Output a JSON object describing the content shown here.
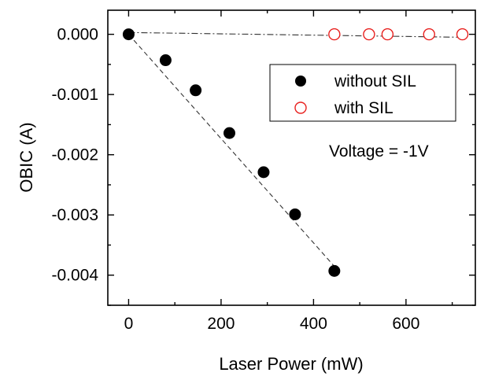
{
  "chart_data": {
    "type": "scatter",
    "title": "",
    "xlabel": "Laser Power (mW)",
    "ylabel": "OBIC (A)",
    "xlim": [
      -45,
      750
    ],
    "ylim": [
      -0.0045,
      0.0004
    ],
    "xticks": [
      0,
      200,
      400,
      600
    ],
    "xtick_labels": [
      "0",
      "200",
      "400",
      "600"
    ],
    "yticks": [
      0.0,
      -0.001,
      -0.002,
      -0.003,
      -0.004
    ],
    "ytick_labels": [
      "0.000",
      "-0.001",
      "-0.002",
      "-0.003",
      "-0.004"
    ],
    "series": [
      {
        "name": "without SIL",
        "marker": "filled-circle",
        "color": "#000000",
        "x": [
          0,
          80,
          145,
          218,
          292,
          360,
          445
        ],
        "y": [
          0.0,
          -0.00043,
          -0.00093,
          -0.00164,
          -0.00229,
          -0.00299,
          -0.00393
        ]
      },
      {
        "name": "with SIL",
        "marker": "open-circle",
        "color": "#e8201e",
        "x": [
          445,
          520,
          560,
          650,
          722
        ],
        "y": [
          0.0,
          0.0,
          0.0,
          0.0,
          0.0
        ]
      }
    ],
    "fit_lines": [
      {
        "name": "without SIL fit",
        "style": "dashed",
        "x": [
          0,
          448
        ],
        "y": [
          0.0,
          -0.00388
        ]
      },
      {
        "name": "with SIL fit",
        "style": "dash-dot",
        "x": [
          0,
          730
        ],
        "y": [
          3e-05,
          -5e-05
        ]
      }
    ],
    "legend": {
      "placement": "top-right",
      "entries": [
        "without SIL",
        "with SIL"
      ]
    },
    "annotation": "Voltage = -1V"
  }
}
